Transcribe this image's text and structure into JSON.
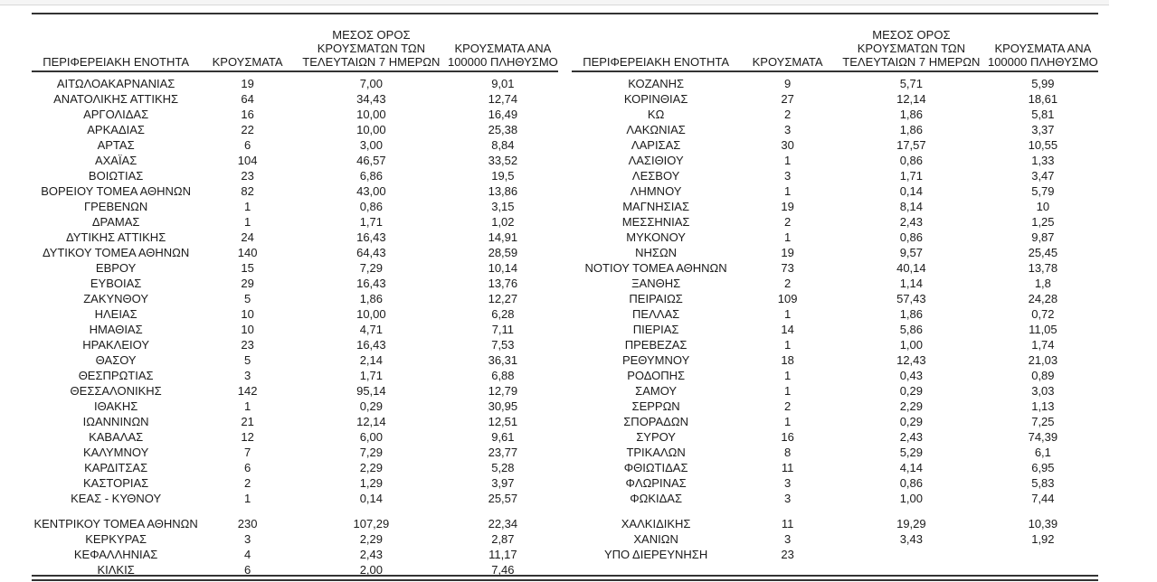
{
  "page": {
    "background_color": "#ffffff",
    "rule_color": "#333333",
    "text_color": "#1b1b1b"
  },
  "table": {
    "headers": {
      "region": "ΠΕΡΙΦΕΡΕΙΑΚΗ ΕΝΟΤΗΤΑ",
      "cases": "ΚΡΟΥΣΜΑΤΑ",
      "avg7_lines": [
        "ΜΕΣΟΣ ΟΡΟΣ",
        "ΚΡΟΥΣΜΑΤΩΝ ΤΩΝ",
        "ΤΕΛΕΥΤΑΙΩΝ 7 ΗΜΕΡΩΝ"
      ],
      "per100k_lines": [
        "ΚΡΟΥΣΜΑΤΑ ΑΝΑ",
        "100000 ΠΛΗΘΥΣΜΟ"
      ]
    },
    "left_rows": [
      {
        "region": "ΑΙΤΩΛΟΑΚΑΡΝΑΝΙΑΣ",
        "cases": "19",
        "avg7": "7,00",
        "per100k": "9,01"
      },
      {
        "region": "ΑΝΑΤΟΛΙΚΗΣ ΑΤΤΙΚΗΣ",
        "cases": "64",
        "avg7": "34,43",
        "per100k": "12,74"
      },
      {
        "region": "ΑΡΓΟΛΙΔΑΣ",
        "cases": "16",
        "avg7": "10,00",
        "per100k": "16,49"
      },
      {
        "region": "ΑΡΚΑΔΙΑΣ",
        "cases": "22",
        "avg7": "10,00",
        "per100k": "25,38"
      },
      {
        "region": "ΑΡΤΑΣ",
        "cases": "6",
        "avg7": "3,00",
        "per100k": "8,84"
      },
      {
        "region": "ΑΧΑΪΑΣ",
        "cases": "104",
        "avg7": "46,57",
        "per100k": "33,52"
      },
      {
        "region": "ΒΟΙΩΤΙΑΣ",
        "cases": "23",
        "avg7": "6,86",
        "per100k": "19,5"
      },
      {
        "region": "ΒΟΡΕΙΟΥ ΤΟΜΕΑ ΑΘΗΝΩΝ",
        "cases": "82",
        "avg7": "43,00",
        "per100k": "13,86"
      },
      {
        "region": "ΓΡΕΒΕΝΩΝ",
        "cases": "1",
        "avg7": "0,86",
        "per100k": "3,15"
      },
      {
        "region": "ΔΡΑΜΑΣ",
        "cases": "1",
        "avg7": "1,71",
        "per100k": "1,02"
      },
      {
        "region": "ΔΥΤΙΚΗΣ ΑΤΤΙΚΗΣ",
        "cases": "24",
        "avg7": "16,43",
        "per100k": "14,91"
      },
      {
        "region": "ΔΥΤΙΚΟΥ ΤΟΜΕΑ ΑΘΗΝΩΝ",
        "cases": "140",
        "avg7": "64,43",
        "per100k": "28,59"
      },
      {
        "region": "ΕΒΡΟΥ",
        "cases": "15",
        "avg7": "7,29",
        "per100k": "10,14"
      },
      {
        "region": "ΕΥΒΟΙΑΣ",
        "cases": "29",
        "avg7": "16,43",
        "per100k": "13,76"
      },
      {
        "region": "ΖΑΚΥΝΘΟΥ",
        "cases": "5",
        "avg7": "1,86",
        "per100k": "12,27"
      },
      {
        "region": "ΗΛΕΙΑΣ",
        "cases": "10",
        "avg7": "10,00",
        "per100k": "6,28"
      },
      {
        "region": "ΗΜΑΘΙΑΣ",
        "cases": "10",
        "avg7": "4,71",
        "per100k": "7,11"
      },
      {
        "region": "ΗΡΑΚΛΕΙΟΥ",
        "cases": "23",
        "avg7": "16,43",
        "per100k": "7,53"
      },
      {
        "region": "ΘΑΣΟΥ",
        "cases": "5",
        "avg7": "2,14",
        "per100k": "36,31"
      },
      {
        "region": "ΘΕΣΠΡΩΤΙΑΣ",
        "cases": "3",
        "avg7": "1,71",
        "per100k": "6,88"
      },
      {
        "region": "ΘΕΣΣΑΛΟΝΙΚΗΣ",
        "cases": "142",
        "avg7": "95,14",
        "per100k": "12,79"
      },
      {
        "region": "ΙΘΑΚΗΣ",
        "cases": "1",
        "avg7": "0,29",
        "per100k": "30,95"
      },
      {
        "region": "ΙΩΑΝΝΙΝΩΝ",
        "cases": "21",
        "avg7": "12,14",
        "per100k": "12,51"
      },
      {
        "region": "ΚΑΒΑΛΑΣ",
        "cases": "12",
        "avg7": "6,00",
        "per100k": "9,61"
      },
      {
        "region": "ΚΑΛΥΜΝΟΥ",
        "cases": "7",
        "avg7": "7,29",
        "per100k": "23,77"
      },
      {
        "region": "ΚΑΡΔΙΤΣΑΣ",
        "cases": "6",
        "avg7": "2,29",
        "per100k": "5,28"
      },
      {
        "region": "ΚΑΣΤΟΡΙΑΣ",
        "cases": "2",
        "avg7": "1,29",
        "per100k": "3,97"
      },
      {
        "region": "ΚΕΑΣ - ΚΥΘΝΟΥ",
        "cases": "1",
        "avg7": "0,14",
        "per100k": "25,57"
      },
      {
        "gap": true
      },
      {
        "region": "ΚΕΝΤΡΙΚΟΥ ΤΟΜΕΑ ΑΘΗΝΩΝ",
        "cases": "230",
        "avg7": "107,29",
        "per100k": "22,34"
      },
      {
        "region": "ΚΕΡΚΥΡΑΣ",
        "cases": "3",
        "avg7": "2,29",
        "per100k": "2,87"
      },
      {
        "region": "ΚΕΦΑΛΛΗΝΙΑΣ",
        "cases": "4",
        "avg7": "2,43",
        "per100k": "11,17"
      },
      {
        "region": "ΚΙΛΚΙΣ",
        "cases": "6",
        "avg7": "2,00",
        "per100k": "7,46"
      }
    ],
    "right_rows": [
      {
        "region": "ΚΟΖΑΝΗΣ",
        "cases": "9",
        "avg7": "5,71",
        "per100k": "5,99"
      },
      {
        "region": "ΚΟΡΙΝΘΙΑΣ",
        "cases": "27",
        "avg7": "12,14",
        "per100k": "18,61"
      },
      {
        "region": "ΚΩ",
        "cases": "2",
        "avg7": "1,86",
        "per100k": "5,81"
      },
      {
        "region": "ΛΑΚΩΝΙΑΣ",
        "cases": "3",
        "avg7": "1,86",
        "per100k": "3,37"
      },
      {
        "region": "ΛΑΡΙΣΑΣ",
        "cases": "30",
        "avg7": "17,57",
        "per100k": "10,55"
      },
      {
        "region": "ΛΑΣΙΘΙΟΥ",
        "cases": "1",
        "avg7": "0,86",
        "per100k": "1,33"
      },
      {
        "region": "ΛΕΣΒΟΥ",
        "cases": "3",
        "avg7": "1,71",
        "per100k": "3,47"
      },
      {
        "region": "ΛΗΜΝΟΥ",
        "cases": "1",
        "avg7": "0,14",
        "per100k": "5,79"
      },
      {
        "region": "ΜΑΓΝΗΣΙΑΣ",
        "cases": "19",
        "avg7": "8,14",
        "per100k": "10"
      },
      {
        "region": "ΜΕΣΣΗΝΙΑΣ",
        "cases": "2",
        "avg7": "2,43",
        "per100k": "1,25"
      },
      {
        "region": "ΜΥΚΟΝΟΥ",
        "cases": "1",
        "avg7": "0,86",
        "per100k": "9,87"
      },
      {
        "region": "ΝΗΣΩΝ",
        "cases": "19",
        "avg7": "9,57",
        "per100k": "25,45"
      },
      {
        "region": "ΝΟΤΙΟΥ ΤΟΜΕΑ ΑΘΗΝΩΝ",
        "cases": "73",
        "avg7": "40,14",
        "per100k": "13,78"
      },
      {
        "region": "ΞΑΝΘΗΣ",
        "cases": "2",
        "avg7": "1,14",
        "per100k": "1,8"
      },
      {
        "region": "ΠΕΙΡΑΙΩΣ",
        "cases": "109",
        "avg7": "57,43",
        "per100k": "24,28"
      },
      {
        "region": "ΠΕΛΛΑΣ",
        "cases": "1",
        "avg7": "1,86",
        "per100k": "0,72"
      },
      {
        "region": "ΠΙΕΡΙΑΣ",
        "cases": "14",
        "avg7": "5,86",
        "per100k": "11,05"
      },
      {
        "region": "ΠΡΕΒΕΖΑΣ",
        "cases": "1",
        "avg7": "1,00",
        "per100k": "1,74"
      },
      {
        "region": "ΡΕΘΥΜΝΟΥ",
        "cases": "18",
        "avg7": "12,43",
        "per100k": "21,03"
      },
      {
        "region": "ΡΟΔΟΠΗΣ",
        "cases": "1",
        "avg7": "0,43",
        "per100k": "0,89"
      },
      {
        "region": "ΣΑΜΟΥ",
        "cases": "1",
        "avg7": "0,29",
        "per100k": "3,03"
      },
      {
        "region": "ΣΕΡΡΩΝ",
        "cases": "2",
        "avg7": "2,29",
        "per100k": "1,13"
      },
      {
        "region": "ΣΠΟΡΑΔΩΝ",
        "cases": "1",
        "avg7": "0,29",
        "per100k": "7,25"
      },
      {
        "region": "ΣΥΡΟΥ",
        "cases": "16",
        "avg7": "2,43",
        "per100k": "74,39"
      },
      {
        "region": "ΤΡΙΚΑΛΩΝ",
        "cases": "8",
        "avg7": "5,29",
        "per100k": "6,1"
      },
      {
        "region": "ΦΘΙΩΤΙΔΑΣ",
        "cases": "11",
        "avg7": "4,14",
        "per100k": "6,95"
      },
      {
        "region": "ΦΛΩΡΙΝΑΣ",
        "cases": "3",
        "avg7": "0,86",
        "per100k": "5,83"
      },
      {
        "region": "ΦΩΚΙΔΑΣ",
        "cases": "3",
        "avg7": "1,00",
        "per100k": "7,44"
      },
      {
        "gap": true
      },
      {
        "region": "ΧΑΛΚΙΔΙΚΗΣ",
        "cases": "11",
        "avg7": "19,29",
        "per100k": "10,39"
      },
      {
        "region": "ΧΑΝΙΩΝ",
        "cases": "3",
        "avg7": "3,43",
        "per100k": "1,92"
      },
      {
        "region": "ΥΠΟ ΔΙΕΡΕΥΝΗΣΗ",
        "cases": "23",
        "avg7": "",
        "per100k": ""
      }
    ]
  }
}
